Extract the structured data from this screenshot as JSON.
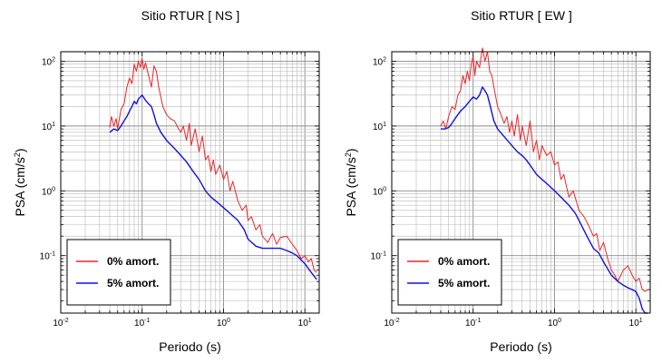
{
  "chart_data": [
    {
      "type": "line",
      "title": "Sitio RTUR [ NS ]",
      "xlabel": "Periodo (s)",
      "ylabel_base": "PSA (cm/s",
      "ylabel_sup": "2",
      "ylabel_end": ")",
      "xscale": "log",
      "yscale": "log",
      "xlim": [
        0.01,
        15
      ],
      "ylim": [
        0.013,
        140
      ],
      "grid": true,
      "legend_position": "bottom-left",
      "x_ticks": [
        {
          "base": "10",
          "exp": "-2",
          "value": 0.01
        },
        {
          "base": "10",
          "exp": "-1",
          "value": 0.1
        },
        {
          "base": "10",
          "exp": "0",
          "value": 1
        },
        {
          "base": "10",
          "exp": "1",
          "value": 10
        }
      ],
      "y_ticks": [
        {
          "base": "10",
          "exp": "-1",
          "value": 0.1
        },
        {
          "base": "10",
          "exp": "0",
          "value": 1
        },
        {
          "base": "10",
          "exp": "1",
          "value": 10
        },
        {
          "base": "10",
          "exp": "2",
          "value": 100
        }
      ],
      "series": [
        {
          "name": "0% amort.",
          "color": "#e8262a",
          "points": [
            [
              0.04,
              9.5
            ],
            [
              0.042,
              14
            ],
            [
              0.045,
              10
            ],
            [
              0.048,
              13
            ],
            [
              0.05,
              9
            ],
            [
              0.055,
              18
            ],
            [
              0.06,
              22
            ],
            [
              0.065,
              40
            ],
            [
              0.07,
              55
            ],
            [
              0.075,
              45
            ],
            [
              0.08,
              90
            ],
            [
              0.085,
              70
            ],
            [
              0.09,
              100
            ],
            [
              0.095,
              80
            ],
            [
              0.1,
              110
            ],
            [
              0.105,
              75
            ],
            [
              0.11,
              95
            ],
            [
              0.12,
              60
            ],
            [
              0.13,
              40
            ],
            [
              0.14,
              85
            ],
            [
              0.15,
              70
            ],
            [
              0.16,
              40
            ],
            [
              0.18,
              20
            ],
            [
              0.2,
              15
            ],
            [
              0.22,
              13
            ],
            [
              0.25,
              12
            ],
            [
              0.28,
              9
            ],
            [
              0.3,
              8
            ],
            [
              0.32,
              10
            ],
            [
              0.35,
              6
            ],
            [
              0.38,
              11
            ],
            [
              0.4,
              5
            ],
            [
              0.45,
              9
            ],
            [
              0.5,
              4
            ],
            [
              0.55,
              7
            ],
            [
              0.6,
              3
            ],
            [
              0.65,
              3.5
            ],
            [
              0.7,
              2
            ],
            [
              0.75,
              3
            ],
            [
              0.8,
              1.8
            ],
            [
              0.9,
              2.5
            ],
            [
              1.0,
              1.5
            ],
            [
              1.1,
              2.0
            ],
            [
              1.2,
              1.0
            ],
            [
              1.3,
              1.4
            ],
            [
              1.5,
              0.7
            ],
            [
              1.7,
              0.5
            ],
            [
              1.9,
              0.6
            ],
            [
              2.0,
              0.35
            ],
            [
              2.2,
              0.4
            ],
            [
              2.5,
              0.25
            ],
            [
              2.8,
              0.3
            ],
            [
              3.0,
              0.2
            ],
            [
              3.5,
              0.16
            ],
            [
              4.0,
              0.22
            ],
            [
              4.5,
              0.15
            ],
            [
              5.0,
              0.19
            ],
            [
              6.0,
              0.2
            ],
            [
              7.0,
              0.15
            ],
            [
              8.0,
              0.12
            ],
            [
              9.0,
              0.09
            ],
            [
              10.0,
              0.1
            ],
            [
              11.0,
              0.08
            ],
            [
              12.0,
              0.09
            ],
            [
              13.0,
              0.06
            ],
            [
              14.0,
              0.055
            ]
          ]
        },
        {
          "name": "5% amort.",
          "color": "#1010e0",
          "points": [
            [
              0.04,
              8
            ],
            [
              0.045,
              9
            ],
            [
              0.05,
              8.5
            ],
            [
              0.055,
              10
            ],
            [
              0.06,
              12
            ],
            [
              0.065,
              14
            ],
            [
              0.07,
              17
            ],
            [
              0.075,
              20
            ],
            [
              0.08,
              24
            ],
            [
              0.085,
              22
            ],
            [
              0.09,
              26
            ],
            [
              0.1,
              30
            ],
            [
              0.11,
              25
            ],
            [
              0.12,
              22
            ],
            [
              0.13,
              20
            ],
            [
              0.14,
              15
            ],
            [
              0.15,
              11
            ],
            [
              0.17,
              8
            ],
            [
              0.2,
              6
            ],
            [
              0.25,
              4.5
            ],
            [
              0.3,
              3.5
            ],
            [
              0.35,
              2.8
            ],
            [
              0.4,
              2.2
            ],
            [
              0.45,
              1.8
            ],
            [
              0.5,
              1.5
            ],
            [
              0.6,
              1.0
            ],
            [
              0.7,
              0.8
            ],
            [
              0.8,
              0.7
            ],
            [
              1.0,
              0.55
            ],
            [
              1.2,
              0.45
            ],
            [
              1.5,
              0.35
            ],
            [
              1.8,
              0.25
            ],
            [
              2.0,
              0.18
            ],
            [
              2.5,
              0.14
            ],
            [
              3.0,
              0.13
            ],
            [
              4.0,
              0.13
            ],
            [
              5.0,
              0.13
            ],
            [
              6.0,
              0.12
            ],
            [
              7.0,
              0.11
            ],
            [
              8.0,
              0.1
            ],
            [
              10.0,
              0.075
            ],
            [
              12.0,
              0.055
            ],
            [
              14.0,
              0.043
            ]
          ]
        }
      ]
    },
    {
      "type": "line",
      "title": "Sitio RTUR [ EW ]",
      "xlabel": "Periodo (s)",
      "ylabel_base": "PSA (cm/s",
      "ylabel_sup": "2",
      "ylabel_end": ")",
      "xscale": "log",
      "yscale": "log",
      "xlim": [
        0.01,
        15
      ],
      "ylim": [
        0.013,
        140
      ],
      "grid": true,
      "legend_position": "bottom-left",
      "x_ticks": [
        {
          "base": "10",
          "exp": "-2",
          "value": 0.01
        },
        {
          "base": "10",
          "exp": "-1",
          "value": 0.1
        },
        {
          "base": "10",
          "exp": "0",
          "value": 1
        },
        {
          "base": "10",
          "exp": "1",
          "value": 10
        }
      ],
      "y_ticks": [
        {
          "base": "10",
          "exp": "-1",
          "value": 0.1
        },
        {
          "base": "10",
          "exp": "0",
          "value": 1
        },
        {
          "base": "10",
          "exp": "1",
          "value": 10
        },
        {
          "base": "10",
          "exp": "2",
          "value": 100
        }
      ],
      "series": [
        {
          "name": "0% amort.",
          "color": "#e8262a",
          "points": [
            [
              0.04,
              10
            ],
            [
              0.043,
              12
            ],
            [
              0.046,
              9
            ],
            [
              0.05,
              14
            ],
            [
              0.055,
              20
            ],
            [
              0.06,
              18
            ],
            [
              0.065,
              30
            ],
            [
              0.07,
              35
            ],
            [
              0.075,
              60
            ],
            [
              0.08,
              45
            ],
            [
              0.085,
              70
            ],
            [
              0.09,
              50
            ],
            [
              0.095,
              90
            ],
            [
              0.1,
              120
            ],
            [
              0.105,
              60
            ],
            [
              0.11,
              100
            ],
            [
              0.12,
              80
            ],
            [
              0.13,
              160
            ],
            [
              0.14,
              100
            ],
            [
              0.15,
              140
            ],
            [
              0.16,
              70
            ],
            [
              0.17,
              60
            ],
            [
              0.18,
              40
            ],
            [
              0.2,
              20
            ],
            [
              0.22,
              15
            ],
            [
              0.24,
              11
            ],
            [
              0.26,
              14
            ],
            [
              0.28,
              8
            ],
            [
              0.3,
              12
            ],
            [
              0.32,
              7
            ],
            [
              0.35,
              15
            ],
            [
              0.38,
              6
            ],
            [
              0.4,
              10
            ],
            [
              0.45,
              5
            ],
            [
              0.5,
              12
            ],
            [
              0.55,
              4
            ],
            [
              0.6,
              6
            ],
            [
              0.65,
              3
            ],
            [
              0.7,
              5
            ],
            [
              0.8,
              3.5
            ],
            [
              0.9,
              4
            ],
            [
              1.0,
              2.5
            ],
            [
              1.1,
              2.8
            ],
            [
              1.2,
              1.5
            ],
            [
              1.3,
              1.8
            ],
            [
              1.5,
              0.8
            ],
            [
              1.7,
              1.0
            ],
            [
              2.0,
              0.5
            ],
            [
              2.3,
              0.4
            ],
            [
              2.6,
              0.3
            ],
            [
              3.0,
              0.2
            ],
            [
              3.3,
              0.22
            ],
            [
              3.6,
              0.12
            ],
            [
              4.0,
              0.16
            ],
            [
              4.5,
              0.09
            ],
            [
              5.0,
              0.06
            ],
            [
              5.5,
              0.05
            ],
            [
              6.0,
              0.04
            ],
            [
              7.0,
              0.06
            ],
            [
              8.0,
              0.07
            ],
            [
              9.0,
              0.05
            ],
            [
              10.0,
              0.04
            ],
            [
              11.0,
              0.045
            ],
            [
              12.0,
              0.03
            ],
            [
              13.0,
              0.028
            ],
            [
              14.0,
              0.03
            ]
          ]
        },
        {
          "name": "5% amort.",
          "color": "#1010e0",
          "points": [
            [
              0.04,
              9
            ],
            [
              0.045,
              9
            ],
            [
              0.05,
              9.5
            ],
            [
              0.055,
              11
            ],
            [
              0.06,
              13
            ],
            [
              0.065,
              15
            ],
            [
              0.07,
              17
            ],
            [
              0.08,
              20
            ],
            [
              0.09,
              24
            ],
            [
              0.1,
              28
            ],
            [
              0.11,
              26
            ],
            [
              0.12,
              30
            ],
            [
              0.13,
              40
            ],
            [
              0.14,
              35
            ],
            [
              0.15,
              30
            ],
            [
              0.16,
              22
            ],
            [
              0.18,
              12
            ],
            [
              0.2,
              9
            ],
            [
              0.25,
              6.5
            ],
            [
              0.3,
              5
            ],
            [
              0.35,
              4
            ],
            [
              0.4,
              3.5
            ],
            [
              0.45,
              3.0
            ],
            [
              0.5,
              2.5
            ],
            [
              0.6,
              1.8
            ],
            [
              0.7,
              1.5
            ],
            [
              0.8,
              1.3
            ],
            [
              1.0,
              1.0
            ],
            [
              1.2,
              0.8
            ],
            [
              1.5,
              0.6
            ],
            [
              1.8,
              0.45
            ],
            [
              2.0,
              0.35
            ],
            [
              2.5,
              0.2
            ],
            [
              3.0,
              0.13
            ],
            [
              3.5,
              0.11
            ],
            [
              4.0,
              0.08
            ],
            [
              5.0,
              0.05
            ],
            [
              6.0,
              0.04
            ],
            [
              7.0,
              0.035
            ],
            [
              8.0,
              0.032
            ],
            [
              9.0,
              0.03
            ],
            [
              10.0,
              0.028
            ],
            [
              11.0,
              0.022
            ],
            [
              12.0,
              0.015
            ],
            [
              13.0,
              0.013
            ],
            [
              14.0,
              0.013
            ]
          ]
        }
      ]
    }
  ]
}
